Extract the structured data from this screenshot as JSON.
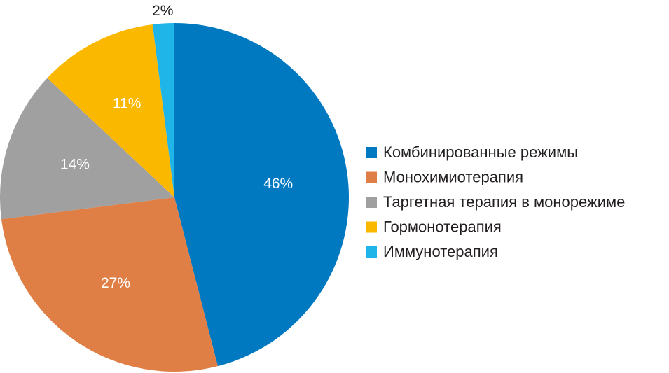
{
  "chart_data": {
    "type": "pie",
    "categories": [
      "Комбинированные режимы",
      "Монохимиотерапия",
      "Таргетная терапия в монорежиме",
      "Гормонотерапия",
      "Иммунотерапия"
    ],
    "values": [
      46,
      27,
      14,
      11,
      2
    ],
    "data_labels": [
      "46%",
      "27%",
      "14%",
      "11%",
      "2%"
    ],
    "colors": [
      "#0079c1",
      "#e07f45",
      "#a0a0a0",
      "#fbb800",
      "#1fb5e9"
    ],
    "start_angle_deg": 0,
    "direction": "clockwise",
    "legend_position": "right",
    "title": ""
  }
}
